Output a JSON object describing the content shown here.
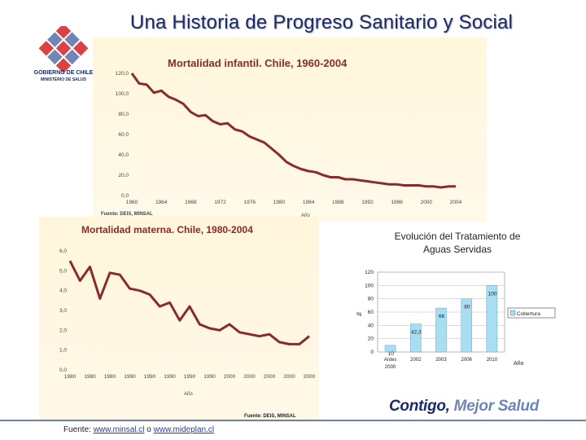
{
  "page": {
    "title": "Una Historia de Progreso Sanitario y Social",
    "logo_line1": "GOBIERNO DE CHILE",
    "logo_line2": "MINISTERIO DE SALUD",
    "slogan_part1": "Contigo,",
    "slogan_part2": "Mejor Salud",
    "source_prefix": "Fuente:",
    "source_link1": "www.minsal.cl",
    "source_sep": "o",
    "source_link2": "www.mideplan.cl"
  },
  "chart_data": [
    {
      "type": "line",
      "title": "Mortalidad infantil. Chile,  1960-2004",
      "xlabel": "Año",
      "source": "Fuente: DEIS, MINSAL",
      "ylim": [
        0,
        120
      ],
      "yticks": [
        "0,0",
        "20,0",
        "40,0",
        "60,0",
        "80,0",
        "100,0",
        "120,0"
      ],
      "xticks": [
        "1960",
        "1964",
        "1968",
        "1972",
        "1976",
        "1980",
        "1984",
        "1988",
        "1992",
        "1996",
        "2000",
        "2004"
      ],
      "x": [
        1960,
        1961,
        1962,
        1963,
        1964,
        1965,
        1966,
        1967,
        1968,
        1969,
        1970,
        1971,
        1972,
        1973,
        1974,
        1975,
        1976,
        1977,
        1978,
        1979,
        1980,
        1981,
        1982,
        1983,
        1984,
        1985,
        1986,
        1987,
        1988,
        1989,
        1990,
        1991,
        1992,
        1993,
        1994,
        1995,
        1996,
        1997,
        1998,
        1999,
        2000,
        2001,
        2002,
        2003,
        2004
      ],
      "y": [
        120,
        110,
        109,
        101,
        103,
        97,
        94,
        90,
        82,
        78,
        79,
        73,
        70,
        71,
        65,
        63,
        58,
        55,
        52,
        46,
        40,
        33,
        29,
        26,
        24,
        23,
        20,
        18,
        18,
        16,
        16,
        15,
        14,
        13,
        12,
        11,
        11,
        10,
        10,
        10,
        9,
        9,
        8,
        9,
        9
      ]
    },
    {
      "type": "line",
      "title": "Mortalidad materna. Chile, 1980-2004",
      "xlabel": "Año",
      "source": "Fuente: DEIS, MINSAL",
      "ylim": [
        0,
        6
      ],
      "yticks": [
        "0,0",
        "1,0",
        "2,0",
        "3,0",
        "4,0",
        "5,0",
        "6,0"
      ],
      "xticks": [
        "1980",
        "1980",
        "1980",
        "1990",
        "1990",
        "1990",
        "1990",
        "1990",
        "2000",
        "2000",
        "2000",
        "2000",
        "2000"
      ],
      "x": [
        1980,
        1981,
        1982,
        1983,
        1984,
        1985,
        1986,
        1987,
        1988,
        1989,
        1990,
        1991,
        1992,
        1993,
        1994,
        1995,
        1996,
        1997,
        1998,
        1999,
        2000,
        2001,
        2002,
        2003,
        2004
      ],
      "y": [
        5.5,
        4.5,
        5.2,
        3.6,
        4.9,
        4.8,
        4.1,
        4.0,
        3.8,
        3.2,
        3.4,
        2.5,
        3.2,
        2.3,
        2.1,
        2.0,
        2.3,
        1.9,
        1.8,
        1.7,
        1.8,
        1.4,
        1.3,
        1.3,
        1.7
      ]
    },
    {
      "type": "bar",
      "title_line1": "Evolución del Tratamiento de",
      "title_line2": "Aguas Servidas",
      "ylabel": "%",
      "xlabel": "Año",
      "legend": "Cobertura",
      "ylim": [
        0,
        120
      ],
      "yticks": [
        "0",
        "20",
        "40",
        "60",
        "80",
        "100",
        "120"
      ],
      "categories": [
        "Antes 2000",
        "2002",
        "2003",
        "2006",
        "2010"
      ],
      "values": [
        10,
        42.3,
        66,
        80,
        100
      ],
      "value_labels": [
        "10",
        "42,3",
        "66",
        "80",
        "100"
      ],
      "colors": {
        "bar": "#a9ddf2",
        "line": "#8b1e1e"
      }
    }
  ]
}
